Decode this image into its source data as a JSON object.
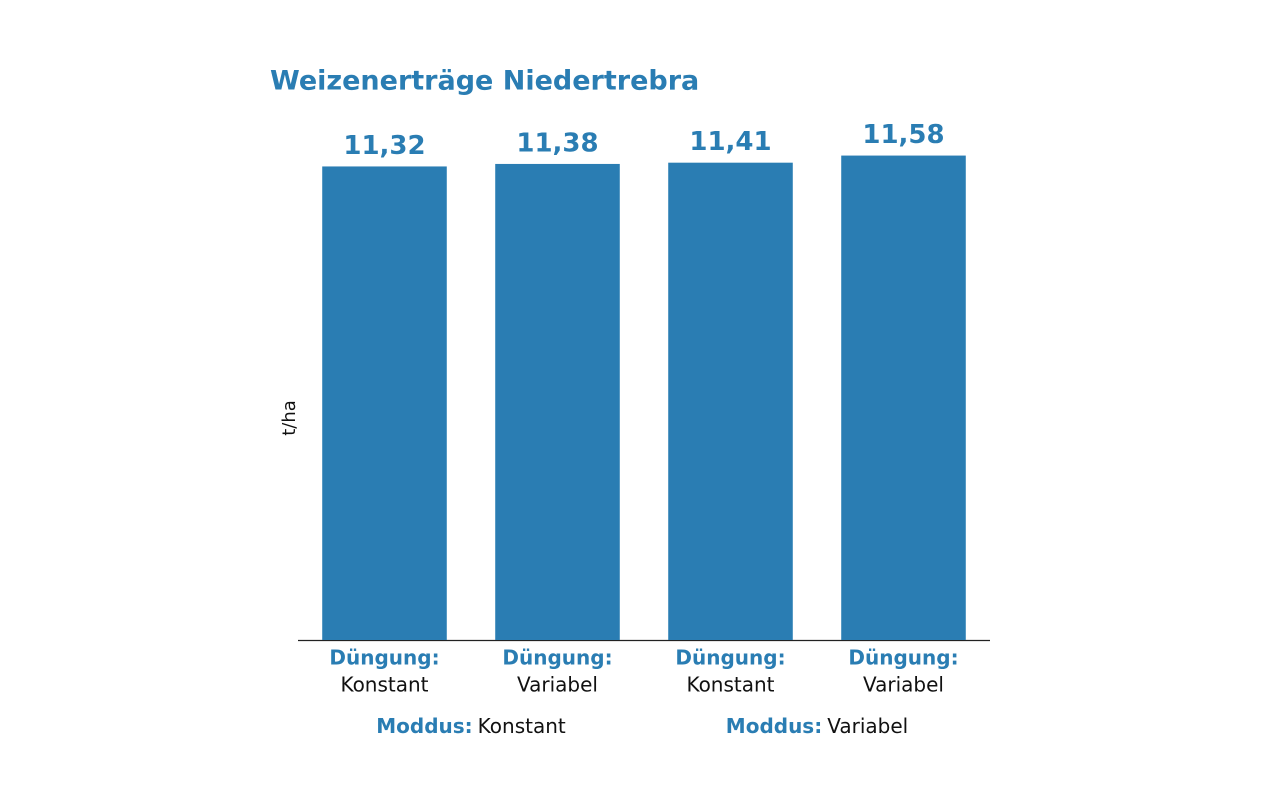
{
  "chart_data": {
    "type": "bar",
    "title": "Weizenerträge Niedertrebra",
    "ylabel": "t/ha",
    "categories": [
      "Konstant",
      "Variabel",
      "Konstant",
      "Variabel"
    ],
    "category_prefix": "Düngung:",
    "groups": {
      "prefix": "Moddus:",
      "labels": [
        "Konstant",
        "Variabel"
      ]
    },
    "values": [
      11.32,
      11.38,
      11.41,
      11.58
    ],
    "value_labels": [
      "11,32",
      "11,38",
      "11,41",
      "11,58"
    ],
    "color": "#2a7db3",
    "ylim": [
      0,
      12
    ],
    "grid": false
  }
}
